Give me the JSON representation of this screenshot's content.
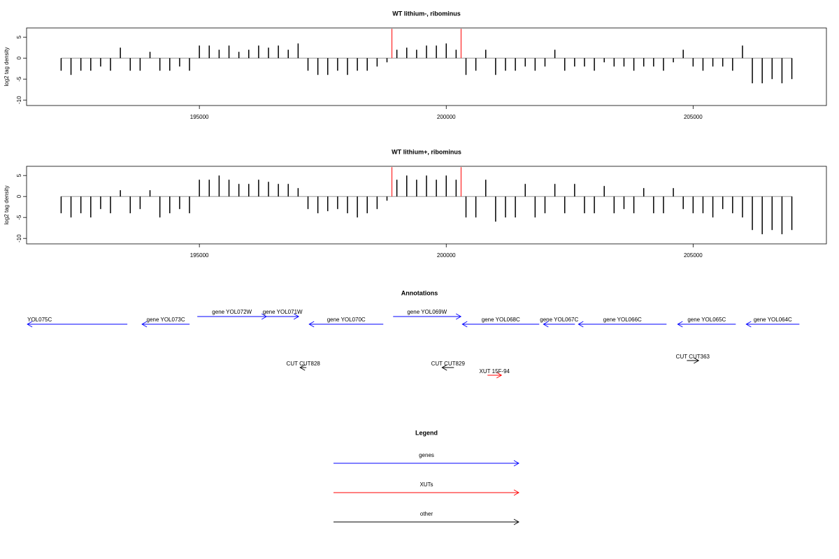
{
  "chart_data": [
    {
      "type": "bar",
      "title": "WT lithium-, ribominus",
      "y_label": "log2 tag density",
      "color": "#000000",
      "x": [
        192200,
        192400,
        192600,
        192800,
        193000,
        193200,
        193400,
        193600,
        193800,
        194000,
        194200,
        194400,
        194600,
        194800,
        195000,
        195200,
        195400,
        195600,
        195800,
        196000,
        196200,
        196400,
        196600,
        196800,
        197000,
        197200,
        197400,
        197600,
        197800,
        198000,
        198200,
        198400,
        198600,
        198800,
        199000,
        199200,
        199400,
        199600,
        199800,
        200000,
        200200,
        200400,
        200600,
        200800,
        201000,
        201200,
        201400,
        201600,
        201800,
        202000,
        202200,
        202400,
        202600,
        202800,
        203000,
        203200,
        203400,
        203600,
        203800,
        204000,
        204200,
        204400,
        204600,
        204800,
        205000,
        205200,
        205400,
        205600,
        205800,
        206000,
        206200,
        206400,
        206600,
        206800,
        207000
      ],
      "values": [
        -3,
        -4,
        -3,
        -3,
        -2,
        -3,
        2.5,
        -3,
        -3,
        1.5,
        -3,
        -3,
        -2,
        -3,
        3,
        3,
        2,
        3,
        1.5,
        2,
        3,
        2.5,
        3,
        2,
        3.5,
        -3,
        -4,
        -4,
        -3,
        -4,
        -3,
        -3,
        -2,
        -1,
        2,
        2.5,
        2,
        3,
        3,
        3.5,
        2,
        -4,
        -3,
        2,
        -4,
        -3,
        -3,
        -2,
        -3,
        -2,
        2,
        -3,
        -2,
        -2,
        -3,
        -1,
        -2,
        -2,
        -3,
        -2,
        -2,
        -3,
        -1,
        2,
        -2,
        -3,
        -2,
        -2,
        -3,
        3,
        -6,
        -6,
        -5,
        -6,
        -5
      ],
      "markers": {
        "x": [
          198900,
          200300
        ],
        "values": [
          7,
          7
        ],
        "color": "#ff0000"
      },
      "xlim": [
        191500,
        207700
      ],
      "xticks": [
        195000,
        200000,
        205000
      ],
      "ylim": [
        -11.3,
        7.2
      ],
      "yticks": [
        5,
        0,
        -5,
        -10
      ]
    },
    {
      "type": "bar",
      "title": "WT lithium+, ribominus",
      "y_label": "log2 tag density",
      "color": "#000000",
      "x": [
        192200,
        192400,
        192600,
        192800,
        193000,
        193200,
        193400,
        193600,
        193800,
        194000,
        194200,
        194400,
        194600,
        194800,
        195000,
        195200,
        195400,
        195600,
        195800,
        196000,
        196200,
        196400,
        196600,
        196800,
        197000,
        197200,
        197400,
        197600,
        197800,
        198000,
        198200,
        198400,
        198600,
        198800,
        199000,
        199200,
        199400,
        199600,
        199800,
        200000,
        200200,
        200400,
        200600,
        200800,
        201000,
        201200,
        201400,
        201600,
        201800,
        202000,
        202200,
        202400,
        202600,
        202800,
        203000,
        203200,
        203400,
        203600,
        203800,
        204000,
        204200,
        204400,
        204600,
        204800,
        205000,
        205200,
        205400,
        205600,
        205800,
        206000,
        206200,
        206400,
        206600,
        206800,
        207000
      ],
      "values": [
        -4,
        -5,
        -4,
        -5,
        -3,
        -4,
        1.5,
        -4,
        -3,
        1.5,
        -5,
        -4,
        -3,
        -4,
        4,
        4,
        5,
        4,
        3,
        3,
        4,
        3.5,
        3,
        3,
        2,
        -3,
        -4,
        -3.5,
        -3,
        -4,
        -5,
        -4,
        -3,
        -1,
        4,
        5,
        4,
        5,
        4,
        5,
        4,
        -5,
        -5,
        4,
        -6,
        -5,
        -5,
        3,
        -5,
        -4,
        3,
        -4,
        3,
        -4,
        -4,
        2.5,
        -4,
        -3,
        -4,
        2,
        -4,
        -4,
        2,
        -3,
        -4,
        -4,
        -5,
        -3,
        -4,
        -5,
        -8,
        -9,
        -8,
        -9,
        -8
      ],
      "markers": {
        "x": [
          198900,
          200300
        ],
        "values": [
          7,
          7
        ],
        "color": "#ff0000"
      },
      "xlim": [
        191500,
        207700
      ],
      "xticks": [
        195000,
        200000,
        205000
      ],
      "ylim": [
        -11.3,
        7.2
      ],
      "yticks": [
        5,
        0,
        -5,
        -10
      ]
    }
  ],
  "annotations": {
    "title": "Annotations",
    "genes": [
      {
        "label": "YOL075C",
        "start": 191516,
        "end": 193541,
        "strand": "-"
      },
      {
        "label": "gene YOL073C",
        "start": 193838,
        "end": 194802,
        "strand": "-"
      },
      {
        "label": "gene YOL072W",
        "start": 194958,
        "end": 196360,
        "strand": "+"
      },
      {
        "label": "gene YOL071W",
        "start": 196360,
        "end": 197011,
        "strand": "+"
      },
      {
        "label": "gene YOL070C",
        "start": 197224,
        "end": 198725,
        "strand": "-"
      },
      {
        "label": "gene YOL069W",
        "start": 198924,
        "end": 200297,
        "strand": "+"
      },
      {
        "label": "gene YOL068C",
        "start": 200326,
        "end": 201884,
        "strand": "-"
      },
      {
        "label": "gene YOL067C",
        "start": 201969,
        "end": 202606,
        "strand": "-"
      },
      {
        "label": "gene YOL066C",
        "start": 202677,
        "end": 204462,
        "strand": "-"
      },
      {
        "label": "gene YOL065C",
        "start": 204688,
        "end": 205864,
        "strand": "-"
      },
      {
        "label": "gene YOL064C",
        "start": 206076,
        "end": 207153,
        "strand": "-"
      }
    ],
    "others": [
      {
        "label": "CUT CUT828",
        "start": 197040,
        "end": 197167,
        "strand": "-",
        "color": "#000000"
      },
      {
        "label": "CUT CUT829",
        "start": 199915,
        "end": 200156,
        "strand": "-",
        "color": "#000000"
      },
      {
        "label": "XUT 15F-94",
        "start": 200836,
        "end": 201119,
        "strand": "+",
        "color": "#ff0000"
      },
      {
        "label": "CUT CUT363",
        "start": 204873,
        "end": 205113,
        "strand": "+",
        "color": "#000000"
      }
    ],
    "gene_color": "#0000ff"
  },
  "legend": {
    "title": "Legend",
    "items": [
      {
        "name": "genes",
        "color": "#0000ff"
      },
      {
        "name": "XUTs",
        "color": "#ff0000"
      },
      {
        "name": "other",
        "color": "#000000"
      }
    ]
  }
}
